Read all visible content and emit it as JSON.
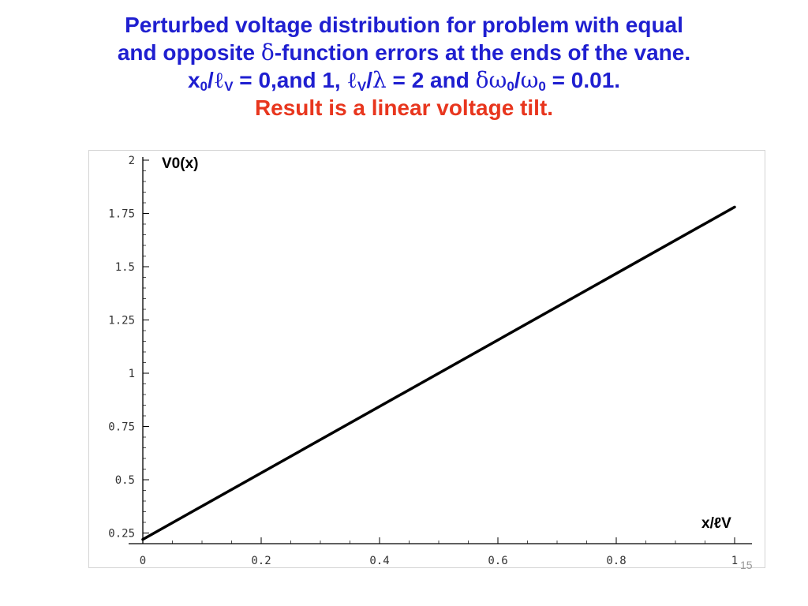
{
  "slide": {
    "title_line1": "Perturbed voltage distribution for problem with equal",
    "title_line2_prefix": "and opposite ",
    "title_line2_symbol": "δ",
    "title_line2_suffix": "-function errors at the ends of the vane.",
    "params": {
      "x": "x",
      "x_sub": "0",
      "slash1": "/",
      "ell": "ℓ",
      "ell_sub": "V",
      "eq1": " = 0,and 1, ",
      "ell2": "ℓ",
      "ell2_sub": "V",
      "slash2": "/",
      "lambda": "λ",
      "eq2": " = 2 and ",
      "delta": "δ",
      "omega": "ω",
      "omega_sub": "0",
      "slash3": "/",
      "omega2": "ω",
      "omega2_sub": "0",
      "eq3": " = 0.01."
    },
    "result_line": "Result is a linear voltage tilt.",
    "page_number": "15",
    "colors": {
      "title": "#1f1fd0",
      "result": "#e8361e",
      "curve": "#000000"
    }
  },
  "chart_data": {
    "type": "line",
    "title": "",
    "xlabel": "x/ℓV",
    "ylabel": "V0(x)",
    "xlim": [
      0,
      1
    ],
    "ylim": [
      0.2,
      2
    ],
    "x_ticks": [
      "0",
      "0.2",
      "0.4",
      "0.6",
      "0.8",
      "1"
    ],
    "y_ticks": [
      "0.25",
      "0.5",
      "0.75",
      "1",
      "1.25",
      "1.5",
      "1.75",
      "2"
    ],
    "grid": false,
    "series": [
      {
        "x": [
          0,
          1
        ],
        "y": [
          0.22,
          1.78
        ]
      }
    ]
  }
}
